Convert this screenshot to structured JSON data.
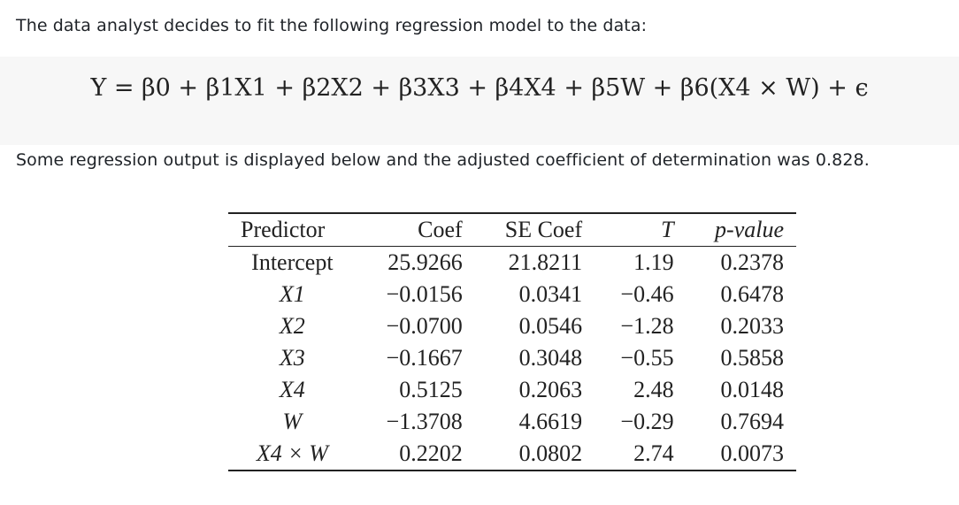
{
  "intro_text": "The data analyst decides to fit the following regression model to the data:",
  "equation": "Y = β0 + β1X1 + β2X2 + β3X3 + β4X4 + β5W + β6(X4 × W) + ϵ",
  "outro_text": "Some regression output is displayed below and the adjusted coefficient of determination was 0.828.",
  "table": {
    "headers": {
      "predictor": "Predictor",
      "coef": "Coef",
      "se_coef": "SE Coef",
      "t": "T",
      "p_value": "p-value"
    },
    "rows": [
      {
        "predictor": "Intercept",
        "coef": "25.9266",
        "se": "21.8211",
        "t": "1.19",
        "p": "0.2378"
      },
      {
        "predictor": "X1",
        "coef": "−0.0156",
        "se": "0.0341",
        "t": "−0.46",
        "p": "0.6478"
      },
      {
        "predictor": "X2",
        "coef": "−0.0700",
        "se": "0.0546",
        "t": "−1.28",
        "p": "0.2033"
      },
      {
        "predictor": "X3",
        "coef": "−0.1667",
        "se": "0.3048",
        "t": "−0.55",
        "p": "0.5858"
      },
      {
        "predictor": "X4",
        "coef": "0.5125",
        "se": "0.2063",
        "t": "2.48",
        "p": "0.0148"
      },
      {
        "predictor": "W",
        "coef": "−1.3708",
        "se": "4.6619",
        "t": "−0.29",
        "p": "0.7694"
      },
      {
        "predictor": "X4 × W",
        "coef": "0.2202",
        "se": "0.0802",
        "t": "2.74",
        "p": "0.0073"
      }
    ]
  }
}
